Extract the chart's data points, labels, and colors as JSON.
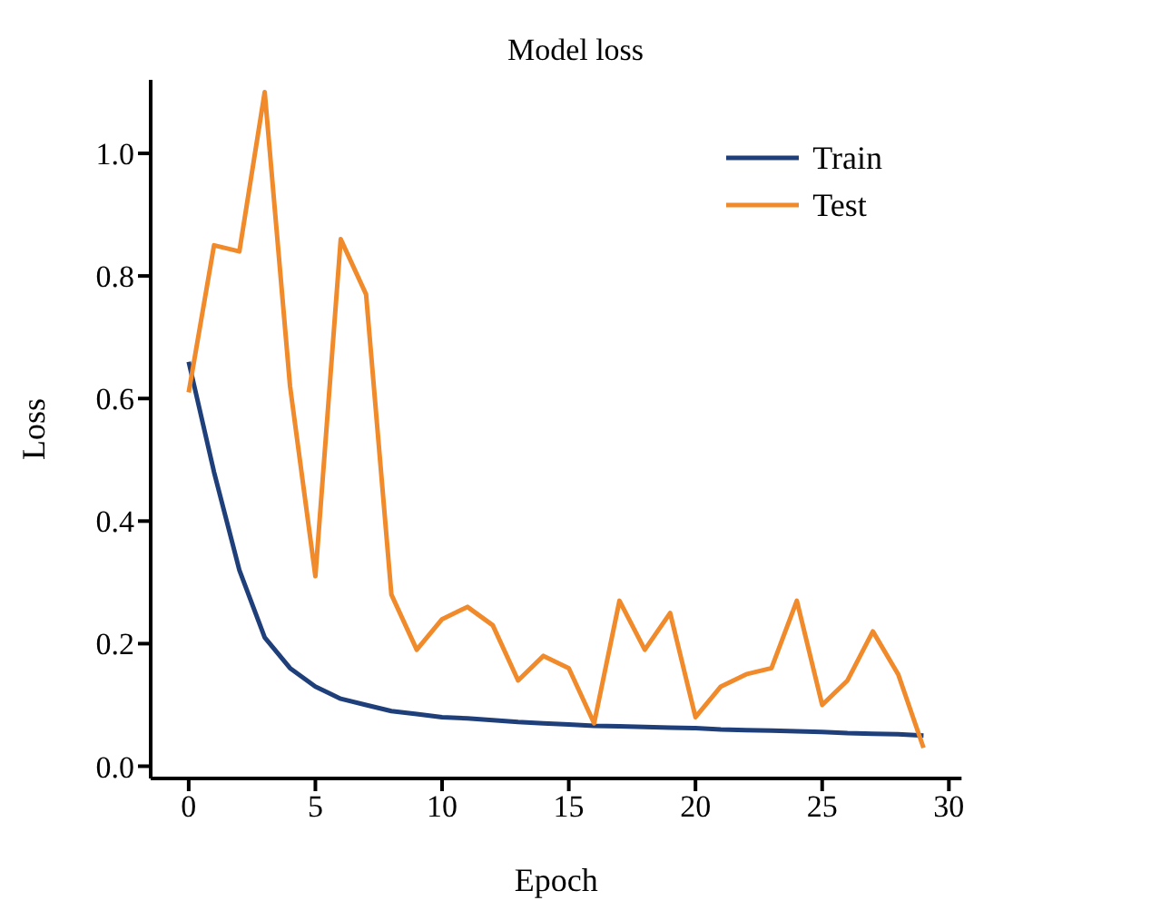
{
  "chart_data": {
    "type": "line",
    "title": "Model loss",
    "xlabel": "Epoch",
    "ylabel": "Loss",
    "x": [
      0,
      1,
      2,
      3,
      4,
      5,
      6,
      7,
      8,
      9,
      10,
      11,
      12,
      13,
      14,
      15,
      16,
      17,
      18,
      19,
      20,
      21,
      22,
      23,
      24,
      25,
      26,
      27,
      28,
      29
    ],
    "series": [
      {
        "name": "Train",
        "color": "#1f3f7a",
        "values": [
          0.66,
          0.48,
          0.32,
          0.21,
          0.16,
          0.13,
          0.11,
          0.1,
          0.09,
          0.085,
          0.08,
          0.078,
          0.075,
          0.072,
          0.07,
          0.068,
          0.066,
          0.065,
          0.064,
          0.063,
          0.062,
          0.06,
          0.059,
          0.058,
          0.057,
          0.056,
          0.054,
          0.053,
          0.052,
          0.05
        ]
      },
      {
        "name": "Test",
        "color": "#f08a2a",
        "values": [
          0.61,
          0.85,
          0.84,
          1.1,
          0.62,
          0.31,
          0.86,
          0.77,
          0.28,
          0.19,
          0.24,
          0.26,
          0.23,
          0.14,
          0.18,
          0.16,
          0.07,
          0.27,
          0.19,
          0.25,
          0.08,
          0.13,
          0.15,
          0.16,
          0.27,
          0.1,
          0.14,
          0.22,
          0.15,
          0.03
        ]
      }
    ],
    "xlim": [
      -1.5,
      30.5
    ],
    "xticks": [
      0,
      5,
      10,
      15,
      20,
      25,
      30
    ],
    "ylim": [
      -0.02,
      1.12
    ],
    "yticks": [
      {
        "value": 0,
        "label": "0.0"
      },
      {
        "value": 0.2,
        "label": "0.2"
      },
      {
        "value": 0.4,
        "label": "0.4"
      },
      {
        "value": 0.6,
        "label": "0.6"
      },
      {
        "value": 0.8,
        "label": "0.8"
      },
      {
        "value": 1,
        "label": "1.0"
      }
    ],
    "grid": false,
    "legend": "top right",
    "marker": "none",
    "line_style": "solid"
  }
}
